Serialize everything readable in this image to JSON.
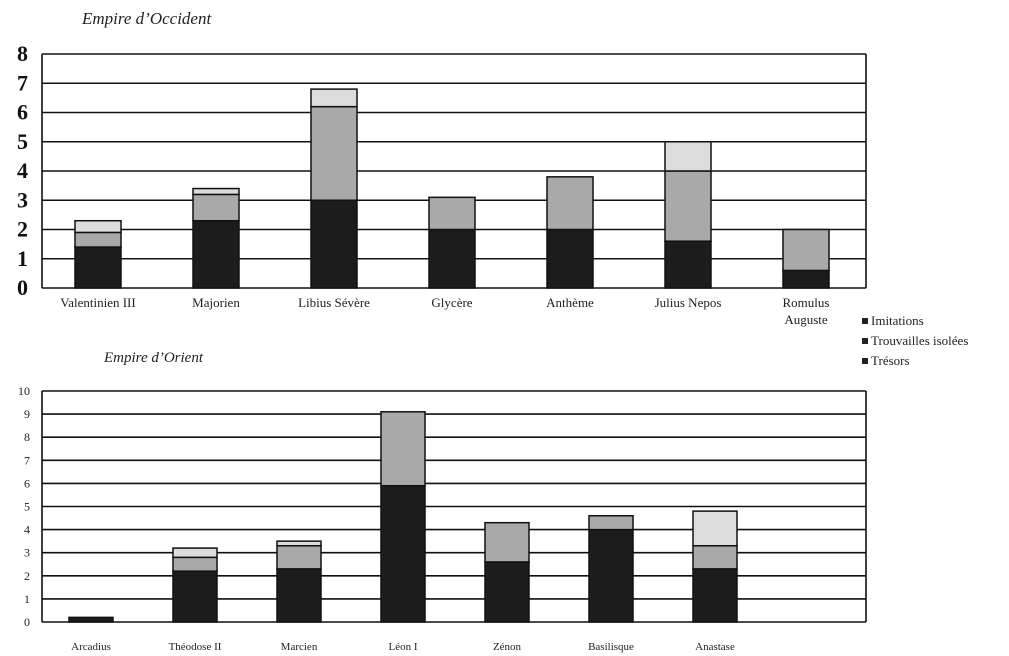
{
  "chart_data": [
    {
      "type": "bar",
      "stacked": true,
      "title": "Empire d’Occident",
      "categories": [
        "Valentinien III",
        "Majorien",
        "Libius Sévère",
        "Glycère",
        "Anthème",
        "Julius Nepos",
        "Romulus Auguste"
      ],
      "series": [
        {
          "name": "Trésors",
          "values": [
            1.4,
            2.3,
            3.0,
            2.0,
            2.0,
            1.6,
            0.6
          ]
        },
        {
          "name": "Trouvailles isolées",
          "values": [
            0.5,
            0.9,
            3.2,
            1.1,
            1.8,
            2.4,
            1.4
          ]
        },
        {
          "name": "Imitations",
          "values": [
            0.4,
            0.2,
            0.6,
            0.0,
            0.0,
            1.0,
            0.0
          ]
        }
      ],
      "ylim": [
        0,
        8
      ],
      "yticks": [
        0,
        1,
        2,
        3,
        4,
        5,
        6,
        7,
        8
      ],
      "grid": true,
      "xlabel": "",
      "ylabel": ""
    },
    {
      "type": "bar",
      "stacked": true,
      "title": "Empire d’Orient",
      "categories": [
        "Arcadius",
        "Théodose II",
        "Marcien",
        "Léon I",
        "Zénon",
        "Basilisque",
        "Anastase"
      ],
      "series": [
        {
          "name": "Trésors",
          "values": [
            0.2,
            2.2,
            2.3,
            5.9,
            2.6,
            4.0,
            2.3
          ]
        },
        {
          "name": "Trouvailles isolées",
          "values": [
            0.0,
            0.6,
            1.0,
            3.2,
            1.7,
            0.6,
            1.0
          ]
        },
        {
          "name": "Imitations",
          "values": [
            0.0,
            0.4,
            0.2,
            0.0,
            0.0,
            0.0,
            1.5
          ]
        }
      ],
      "ylim": [
        0,
        10
      ],
      "yticks": [
        0,
        1,
        2,
        3,
        4,
        5,
        6,
        7,
        8,
        9,
        10
      ],
      "grid": true,
      "xlabel": "",
      "ylabel": ""
    }
  ],
  "legend": {
    "placement": "right",
    "items": [
      "Imitations",
      "Trouvailles isolées",
      "Trésors"
    ]
  },
  "colors": {
    "tresors": "#1c1c1c",
    "trouvailles": "#a9a9a9",
    "imitations": "#dcdcdc",
    "bar_edge": "#111111"
  }
}
